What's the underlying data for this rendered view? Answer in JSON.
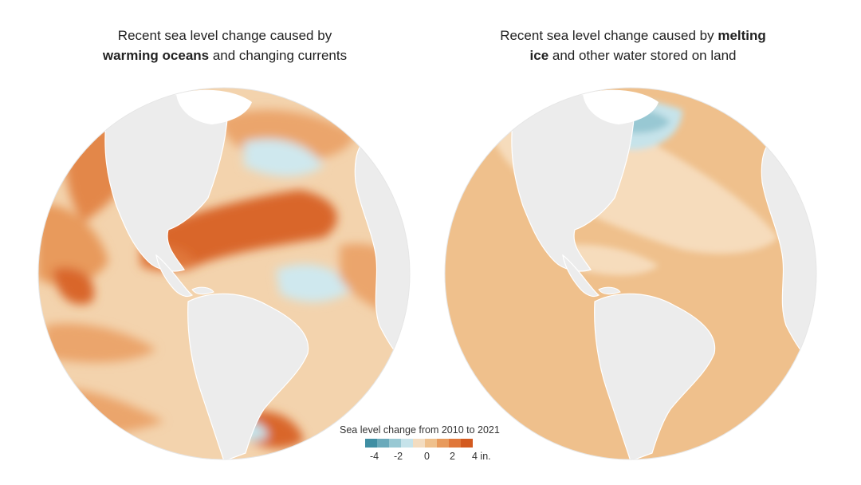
{
  "left_map": {
    "title_pre": "Recent sea level change caused by ",
    "title_bold": "warming oceans",
    "title_post": " and changing currents"
  },
  "right_map": {
    "title_pre": "Recent sea level change caused by ",
    "title_bold": "melting ice",
    "title_post": " and other water stored on land"
  },
  "legend": {
    "title": "Sea level change from 2010 to 2021",
    "ticks": [
      "-4",
      "-2",
      "0",
      "2",
      "4 in."
    ],
    "colors": [
      "#3f8ea3",
      "#6aaabb",
      "#98c8d3",
      "#c6e3ea",
      "#f3dcc0",
      "#efc08c",
      "#e89a5c",
      "#e0773a",
      "#d35a1f"
    ]
  },
  "colors": {
    "land": "#ececec",
    "land_border": "#ffffff",
    "ocean_light": "#f3d3ad",
    "ocean_mid": "#eba56c",
    "ocean_dark": "#d9662a",
    "ocean_negative": "#cfe8ee",
    "ice": "#ffffff"
  }
}
